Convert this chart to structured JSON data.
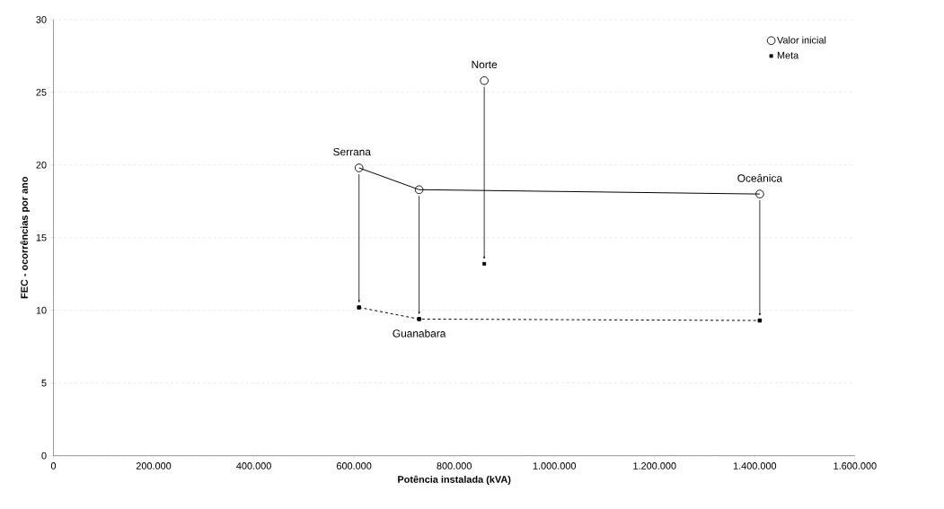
{
  "chart_data": {
    "type": "scatter",
    "xlabel": "Potência instalada (kVA)",
    "ylabel": "FEC - ocorrências por ano",
    "series": [
      {
        "name": "Valor inicial",
        "type": "line",
        "marker": "circle",
        "line_style": "solid",
        "color": "#000000",
        "x": [
          610000,
          730000,
          1410000
        ],
        "values": [
          19.8,
          18.3,
          18.0
        ]
      },
      {
        "name": "Meta",
        "type": "line",
        "marker": "square",
        "line_style": "dashed",
        "color": "#000000",
        "x": [
          610000,
          730000,
          1410000
        ],
        "values": [
          10.2,
          9.4,
          9.3
        ]
      },
      {
        "marker": "circle",
        "color": "#000000",
        "x": [
          860000
        ],
        "values": [
          25.8
        ]
      },
      {
        "marker": "square",
        "color": "#000000",
        "x": [
          860000
        ],
        "values": [
          13.2
        ]
      }
    ],
    "annotations": [
      "Serrana",
      "Guanabara",
      "Norte",
      "Oceânica"
    ],
    "xlim": [
      0,
      1600000
    ],
    "ylim": [
      0,
      30
    ],
    "xticks": [
      0,
      {
        "value": 200000,
        "label": "200.000"
      },
      {
        "value": 400000,
        "label": "400.000"
      },
      {
        "value": 600000,
        "label": "600.000"
      },
      {
        "value": 800000,
        "label": "800.000"
      },
      {
        "value": 1000000,
        "label": "1.000.000"
      },
      {
        "value": 1200000,
        "label": "1.200.000"
      },
      {
        "value": 1400000,
        "label": "1.400.000"
      },
      {
        "value": 1600000,
        "label": "1.600.000"
      }
    ],
    "yticks": [
      0,
      5,
      10,
      15,
      20,
      25,
      30
    ],
    "grid": "y",
    "legend": "top right"
  }
}
